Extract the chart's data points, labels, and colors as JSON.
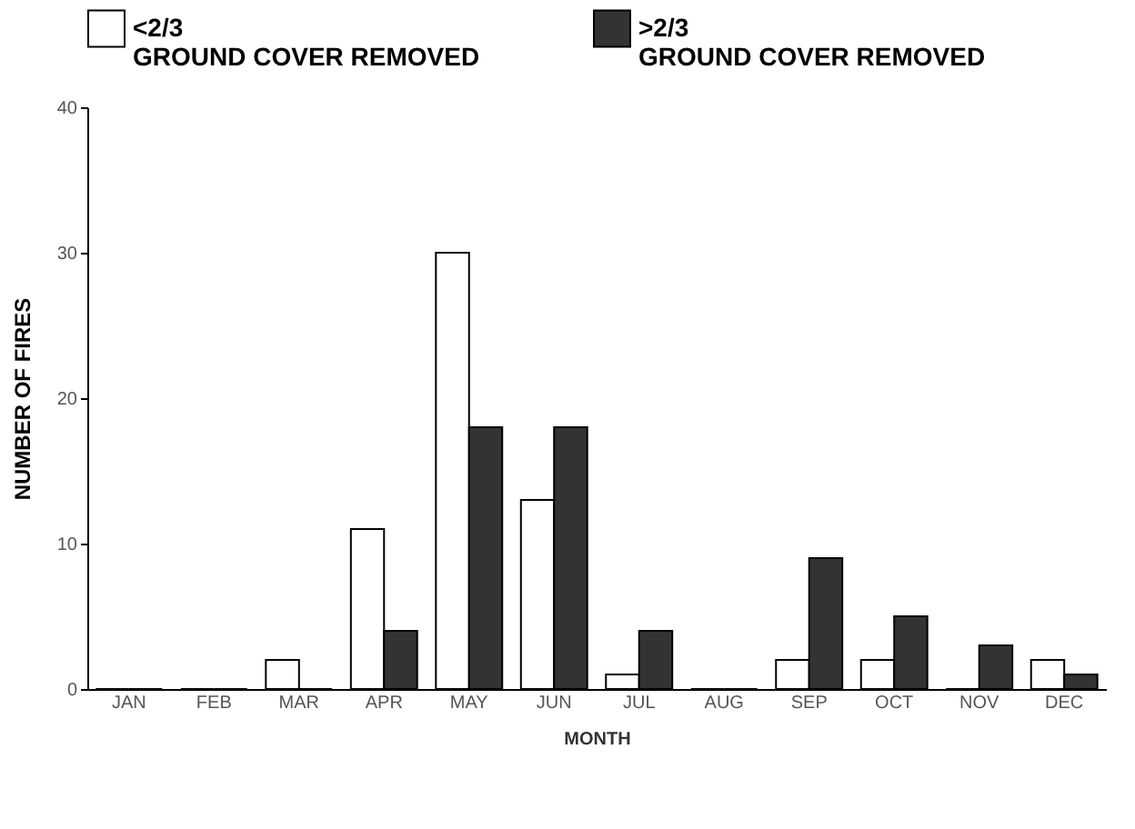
{
  "chart_data": {
    "type": "bar",
    "xlabel": "MONTH",
    "ylabel": "NUMBER OF FIRES",
    "categories": [
      "JAN",
      "FEB",
      "MAR",
      "APR",
      "MAY",
      "JUN",
      "JUL",
      "AUG",
      "SEP",
      "OCT",
      "NOV",
      "DEC"
    ],
    "series": [
      {
        "name": "<2/3\nGROUND COVER REMOVED",
        "color": "#ffffff",
        "values": [
          0,
          0,
          2,
          11,
          30,
          13,
          1,
          0,
          2,
          2,
          0,
          2
        ]
      },
      {
        "name": ">2/3\nGROUND COVER REMOVED",
        "color": "#333333",
        "values": [
          0,
          0,
          0,
          4,
          18,
          18,
          4,
          0,
          9,
          5,
          3,
          1
        ]
      }
    ],
    "ylim": [
      0,
      40
    ],
    "yticks": [
      0,
      10,
      20,
      30,
      40
    ],
    "grid": false,
    "legend": "top"
  }
}
